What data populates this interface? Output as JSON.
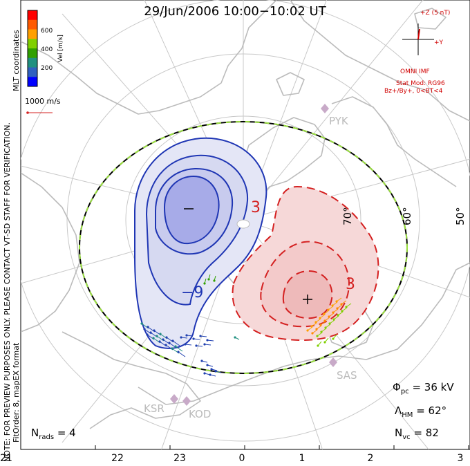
{
  "title": "29/Jun/2006 10:00−10:02 UT",
  "side_note": "NOTE: FOR PREVIEW PURPOSES ONLY. PLEASE CONTACT VT-SD STAFF FOR VERIFICATION.",
  "fit_order": "FitOrder: 8, mapEX format",
  "coordinates_label": "MLT coordinates",
  "colorbar": {
    "label": "Vel [m/s]",
    "ticks": [
      "600",
      "400",
      "200"
    ],
    "colors": [
      "#ff0000",
      "#ff5a00",
      "#ffa000",
      "#80d000",
      "#30a000",
      "#209080",
      "#3060c0",
      "#0000ff"
    ]
  },
  "velocity_scale": "1000 m/s",
  "imf": {
    "z_label": "+Z (5 nT)",
    "y_label": "+Y",
    "source": "OMNI IMF",
    "model": "Stat Mod: RG96",
    "condition": "Bz+/By+, 0<BT<4"
  },
  "stations": [
    "PYK",
    "SAS",
    "KSR",
    "KOD"
  ],
  "latitude_labels": [
    "70°",
    "60°",
    "50°"
  ],
  "contour_labels": {
    "negative": "−9",
    "positive": "3",
    "positive_outer": "3"
  },
  "potential_markers": {
    "min": "−",
    "max": "+"
  },
  "stats": {
    "phi_pc": {
      "symbol": "Φ",
      "sub": "pc",
      "value": "= 36 kV"
    },
    "lambda_hm": {
      "symbol": "Λ",
      "sub": "HM",
      "value": "= 62°"
    },
    "n_vc": {
      "symbol": "N",
      "sub": "vc",
      "value": "= 82"
    },
    "n_rads": {
      "symbol": "N",
      "sub": "rads",
      "value": "= 4"
    }
  },
  "mlt_axis": [
    "21",
    "22",
    "23",
    "0",
    "1",
    "2",
    "3"
  ],
  "colors": {
    "negative": "#1f36b4",
    "positive": "#d42020",
    "land": "#bbbbbb",
    "grid": "#c8c8c8",
    "boundary_dash": "#9be040"
  }
}
